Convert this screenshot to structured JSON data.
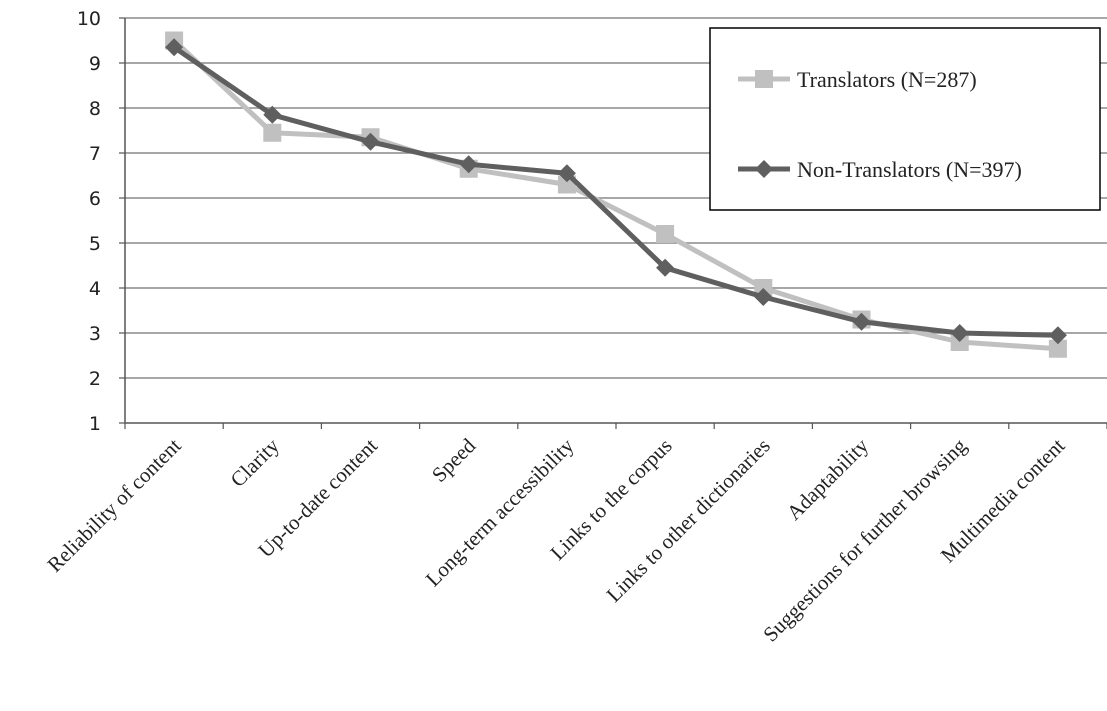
{
  "chart_data": {
    "type": "line",
    "title": "",
    "xlabel": "",
    "ylabel": "",
    "ylim": [
      1,
      10
    ],
    "yticks": [
      1,
      2,
      3,
      4,
      5,
      6,
      7,
      8,
      9,
      10
    ],
    "grid": "horizontal",
    "legend_position": "top-right",
    "categories": [
      "Reliability of content",
      "Clarity",
      "Up-to-date content",
      "Speed",
      "Long-term accessibility",
      "Links to the corpus",
      "Links to other dictionaries",
      "Adaptability",
      "Suggestions for further browsing",
      "Multimedia content"
    ],
    "series": [
      {
        "name": "Translators (N=287)",
        "marker": "square",
        "color": "#c0c0c0",
        "values": [
          9.5,
          7.45,
          7.35,
          6.65,
          6.3,
          5.2,
          4.0,
          3.3,
          2.8,
          2.65
        ]
      },
      {
        "name": "Non-Translators (N=397)",
        "marker": "diamond",
        "color": "#5f5f5f",
        "values": [
          9.35,
          7.85,
          7.25,
          6.75,
          6.55,
          4.45,
          3.8,
          3.25,
          3.0,
          2.95
        ]
      }
    ]
  }
}
